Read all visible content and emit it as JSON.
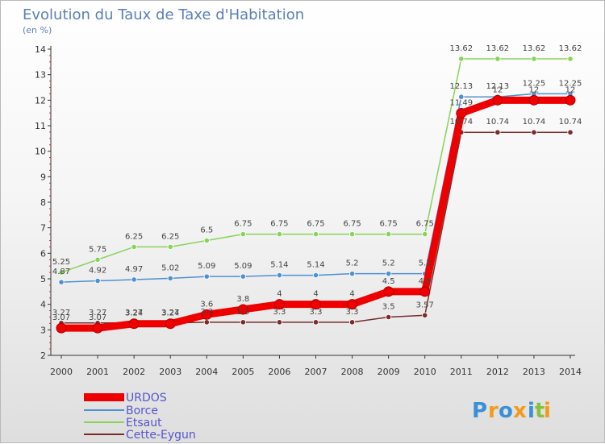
{
  "chart_data": {
    "type": "line",
    "title": "Evolution du Taux de Taxe d'Habitation",
    "subtitle": "(en %)",
    "x": [
      "2000",
      "2001",
      "2002",
      "2003",
      "2004",
      "2005",
      "2006",
      "2007",
      "2008",
      "2009",
      "2010",
      "2011",
      "2012",
      "2013",
      "2014"
    ],
    "ylim": [
      2,
      14
    ],
    "yticks": [
      2,
      3,
      4,
      5,
      6,
      7,
      8,
      9,
      10,
      11,
      12,
      13,
      14
    ],
    "grid": false,
    "legend_position": "bottom-left",
    "series": [
      {
        "name": "URDOS",
        "color": "#ee0000",
        "values": [
          3.07,
          3.07,
          3.24,
          3.24,
          3.6,
          3.8,
          4,
          4,
          4,
          4.5,
          4.5,
          11.49,
          12,
          12,
          12
        ]
      },
      {
        "name": "Borce",
        "color": "#4f90d3",
        "values": [
          4.87,
          4.92,
          4.97,
          5.02,
          5.09,
          5.09,
          5.14,
          5.14,
          5.2,
          5.2,
          5.2,
          12.13,
          12.13,
          12.25,
          12.25
        ]
      },
      {
        "name": "Etsaut",
        "color": "#88d35a",
        "values": [
          5.25,
          5.75,
          6.25,
          6.25,
          6.5,
          6.75,
          6.75,
          6.75,
          6.75,
          6.75,
          6.75,
          13.62,
          13.62,
          13.62,
          13.62
        ]
      },
      {
        "name": "Cette-Eygun",
        "color": "#7b2b2b",
        "values": [
          3.27,
          3.27,
          3.27,
          3.27,
          3.3,
          3.3,
          3.3,
          3.3,
          3.3,
          3.5,
          3.57,
          10.74,
          10.74,
          10.74,
          10.74
        ]
      }
    ],
    "data_labels": {
      "URDOS": [
        "3.07",
        "3.07",
        "3.24",
        "3.24",
        "3.6",
        "3.8",
        "4",
        "4",
        "4",
        "4.5",
        "4.5",
        "11.49",
        "12",
        "12",
        "12"
      ],
      "Borce": [
        "4.87",
        "4.92",
        "4.97",
        "5.02",
        "5.09",
        "5.09",
        "5.14",
        "5.14",
        "5.2",
        "5.2",
        "5.2",
        "12.13",
        "12.13",
        "12.25",
        "12.25"
      ],
      "Etsaut": [
        "5.25",
        "5.75",
        "6.25",
        "6.25",
        "6.5",
        "6.75",
        "6.75",
        "6.75",
        "6.75",
        "6.75",
        "6.75",
        "13.62",
        "13.62",
        "13.62",
        "13.62"
      ],
      "Cette-Eygun": [
        "3.27",
        "3.27",
        "3.27",
        "3.27",
        "3.3",
        "3.3",
        "3.3",
        "3.3",
        "3.3",
        "3.5",
        "3.57",
        "10.74",
        "10.74",
        "10.74",
        "10.74"
      ]
    }
  },
  "legend": {
    "title_color": "#5555cc",
    "items": [
      "URDOS",
      "Borce",
      "Etsaut",
      "Cette-Eygun"
    ]
  },
  "logo": {
    "letters": [
      "P",
      "r",
      "o",
      "x",
      "i",
      "t",
      "i"
    ],
    "colors": [
      "#3a8fd6",
      "#f39a1c",
      "#3a8fd6",
      "#f39a1c",
      "#3a8fd6",
      "#86c13d",
      "#f39a1c"
    ]
  }
}
